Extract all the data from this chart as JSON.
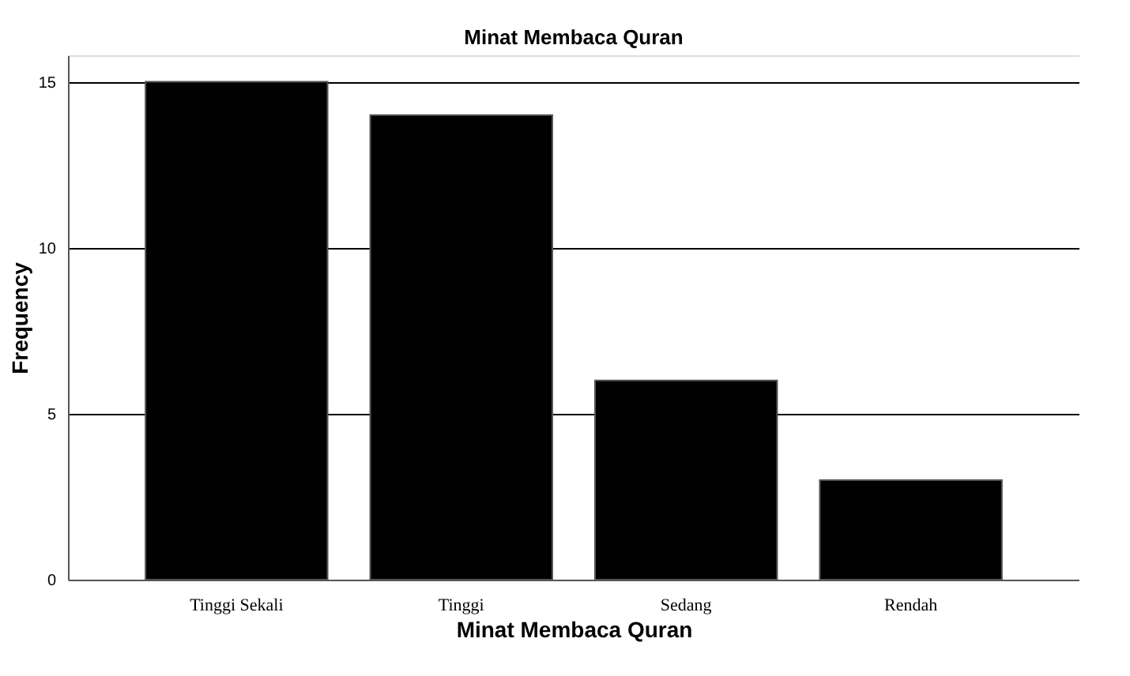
{
  "chart_data": {
    "type": "bar",
    "title": "Minat Membaca Quran",
    "xlabel": "Minat Membaca Quran",
    "ylabel": "Frequency",
    "categories": [
      "Tinggi Sekali",
      "Tinggi",
      "Sedang",
      "Rendah"
    ],
    "values": [
      15,
      14,
      6,
      3
    ],
    "color": "#000000",
    "ylim": [
      0,
      15.8
    ],
    "yticks": [
      0,
      5,
      10,
      15
    ],
    "grid": "y"
  }
}
